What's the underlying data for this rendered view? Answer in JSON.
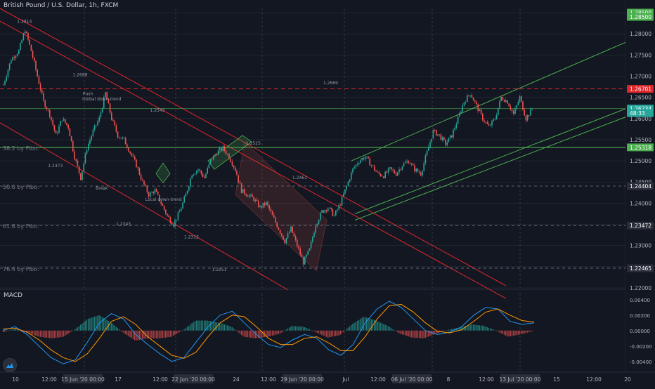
{
  "symbol_title": "British Pound / U.S. Dollar, 1h, FXCM",
  "macd_label": "MACD",
  "colors": {
    "bg": "#131722",
    "grid": "#2a2e39",
    "up": "#26a69a",
    "down": "#ef5350",
    "red_channel": "#e0262b",
    "green_channel": "#4caf50",
    "macd": "#2196f3",
    "signal": "#ff9800"
  },
  "icons": {
    "logo": "tradingview-logo-icon"
  },
  "chart_data": {
    "type": "candlestick",
    "title": "British Pound / U.S. Dollar, 1h, FXCM",
    "y_range": [
      1.22,
      1.286
    ],
    "price_ticks": [
      "1.28500",
      "1.28000",
      "1.27500",
      "1.27000",
      "1.26500",
      "1.26000",
      "1.25500",
      "1.25000",
      "1.24500",
      "1.24000",
      "1.23500",
      "1.23000",
      "1.22500",
      "1.22000"
    ],
    "price_tick_values": [
      1.285,
      1.28,
      1.275,
      1.27,
      1.265,
      1.26,
      1.255,
      1.25,
      1.245,
      1.24,
      1.235,
      1.23,
      1.225,
      1.22
    ],
    "price_labels": [
      {
        "text": "1.28500",
        "price": 1.285,
        "color": "#4caf50"
      },
      {
        "text": "1.28500",
        "price": 1.284,
        "color": "#4caf50"
      },
      {
        "text": "1.26701",
        "price": 1.267,
        "color": "#e0262b"
      },
      {
        "text": "1.26234",
        "price": 1.26234,
        "color": "#26a69a"
      },
      {
        "text": "48:33",
        "price": 1.2613,
        "color": "#26a69a"
      },
      {
        "text": "1.25318",
        "price": 1.25318,
        "color": "#4caf50"
      },
      {
        "text": "1.24404",
        "price": 1.24404,
        "color": "#2a2e39"
      },
      {
        "text": "1.23472",
        "price": 1.23472,
        "color": "#2a2e39"
      },
      {
        "text": "1.22465",
        "price": 1.22465,
        "color": "#2a2e39"
      }
    ],
    "fibo_levels": [
      {
        "label": "38.2 by Fibo:",
        "price": 1.25318
      },
      {
        "label": "50.0 by Fibo:",
        "price": 1.24404
      },
      {
        "label": "61.8 by Fibo:",
        "price": 1.23472
      },
      {
        "label": "76.4 by Fibo:",
        "price": 1.22465
      }
    ],
    "resistance_dashed": 1.26701,
    "horizontal_line": 1.26234,
    "price_points": [
      {
        "i": 0,
        "p": 1.268
      },
      {
        "i": 5,
        "p": 1.274
      },
      {
        "i": 10,
        "p": 1.276
      },
      {
        "i": 14,
        "p": 1.281
      },
      {
        "i": 18,
        "p": 1.276
      },
      {
        "i": 22,
        "p": 1.27
      },
      {
        "i": 26,
        "p": 1.264
      },
      {
        "i": 30,
        "p": 1.261
      },
      {
        "i": 34,
        "p": 1.256
      },
      {
        "i": 38,
        "p": 1.26
      },
      {
        "i": 42,
        "p": 1.258
      },
      {
        "i": 46,
        "p": 1.251
      },
      {
        "i": 50,
        "p": 1.246
      },
      {
        "i": 54,
        "p": 1.253
      },
      {
        "i": 58,
        "p": 1.257
      },
      {
        "i": 62,
        "p": 1.26
      },
      {
        "i": 66,
        "p": 1.266
      },
      {
        "i": 70,
        "p": 1.26
      },
      {
        "i": 74,
        "p": 1.256
      },
      {
        "i": 78,
        "p": 1.255
      },
      {
        "i": 82,
        "p": 1.252
      },
      {
        "i": 86,
        "p": 1.249
      },
      {
        "i": 90,
        "p": 1.245
      },
      {
        "i": 94,
        "p": 1.242
      },
      {
        "i": 98,
        "p": 1.243
      },
      {
        "i": 102,
        "p": 1.24
      },
      {
        "i": 106,
        "p": 1.237
      },
      {
        "i": 110,
        "p": 1.235
      },
      {
        "i": 114,
        "p": 1.238
      },
      {
        "i": 118,
        "p": 1.242
      },
      {
        "i": 122,
        "p": 1.247
      },
      {
        "i": 126,
        "p": 1.248
      },
      {
        "i": 130,
        "p": 1.246
      },
      {
        "i": 134,
        "p": 1.25
      },
      {
        "i": 138,
        "p": 1.252
      },
      {
        "i": 142,
        "p": 1.253
      },
      {
        "i": 146,
        "p": 1.251
      },
      {
        "i": 150,
        "p": 1.248
      },
      {
        "i": 154,
        "p": 1.243
      },
      {
        "i": 158,
        "p": 1.242
      },
      {
        "i": 162,
        "p": 1.241
      },
      {
        "i": 166,
        "p": 1.239
      },
      {
        "i": 170,
        "p": 1.24
      },
      {
        "i": 174,
        "p": 1.237
      },
      {
        "i": 178,
        "p": 1.234
      },
      {
        "i": 182,
        "p": 1.231
      },
      {
        "i": 186,
        "p": 1.234
      },
      {
        "i": 190,
        "p": 1.23
      },
      {
        "i": 194,
        "p": 1.226
      },
      {
        "i": 198,
        "p": 1.229
      },
      {
        "i": 202,
        "p": 1.235
      },
      {
        "i": 206,
        "p": 1.238
      },
      {
        "i": 210,
        "p": 1.239
      },
      {
        "i": 214,
        "p": 1.237
      },
      {
        "i": 218,
        "p": 1.24
      },
      {
        "i": 222,
        "p": 1.244
      },
      {
        "i": 226,
        "p": 1.248
      },
      {
        "i": 230,
        "p": 1.25
      },
      {
        "i": 234,
        "p": 1.251
      },
      {
        "i": 238,
        "p": 1.249
      },
      {
        "i": 242,
        "p": 1.247
      },
      {
        "i": 246,
        "p": 1.2465
      },
      {
        "i": 250,
        "p": 1.248
      },
      {
        "i": 254,
        "p": 1.247
      },
      {
        "i": 258,
        "p": 1.249
      },
      {
        "i": 262,
        "p": 1.25
      },
      {
        "i": 266,
        "p": 1.248
      },
      {
        "i": 270,
        "p": 1.247
      },
      {
        "i": 274,
        "p": 1.252
      },
      {
        "i": 278,
        "p": 1.257
      },
      {
        "i": 282,
        "p": 1.256
      },
      {
        "i": 286,
        "p": 1.254
      },
      {
        "i": 290,
        "p": 1.256
      },
      {
        "i": 294,
        "p": 1.26
      },
      {
        "i": 298,
        "p": 1.264
      },
      {
        "i": 302,
        "p": 1.266
      },
      {
        "i": 306,
        "p": 1.263
      },
      {
        "i": 310,
        "p": 1.26
      },
      {
        "i": 314,
        "p": 1.258
      },
      {
        "i": 318,
        "p": 1.26
      },
      {
        "i": 322,
        "p": 1.265
      },
      {
        "i": 326,
        "p": 1.264
      },
      {
        "i": 330,
        "p": 1.261
      },
      {
        "i": 334,
        "p": 1.265
      },
      {
        "i": 338,
        "p": 1.26
      },
      {
        "i": 342,
        "p": 1.2623
      }
    ],
    "annotations": [
      {
        "text": "1.2814",
        "i": 14,
        "p": 1.2826
      },
      {
        "text": "1.2688",
        "i": 50,
        "p": 1.27
      },
      {
        "text": "Push",
        "i": 55,
        "p": 1.2655
      },
      {
        "text": "Global down-trend",
        "i": 64,
        "p": 1.2643
      },
      {
        "text": "1.2543",
        "i": 100,
        "p": 1.2616
      },
      {
        "text": "1.2473",
        "i": 34,
        "p": 1.2485
      },
      {
        "text": "Break",
        "i": 64,
        "p": 1.2432
      },
      {
        "text": "1.2343",
        "i": 78,
        "p": 1.2348
      },
      {
        "text": "Local down-trend",
        "i": 104,
        "p": 1.2406
      },
      {
        "text": "1.2312",
        "i": 122,
        "p": 1.2317
      },
      {
        "text": "1.2251",
        "i": 140,
        "p": 1.224
      },
      {
        "text": "1.2525",
        "i": 162,
        "p": 1.2538
      },
      {
        "text": "1.2461",
        "i": 192,
        "p": 1.2457
      },
      {
        "text": "1.2669",
        "i": 212,
        "p": 1.2681
      }
    ],
    "time_labels": [
      "10",
      "12:00",
      "15 Jun '20   00:00",
      "17",
      "12:00",
      "22 Jun '20   00:00",
      "24",
      "12:00",
      "29 Jun '20   00:00",
      "Jul",
      "12:00",
      "06 Jul '20   00:00",
      "8",
      "12:00",
      "13 Jul '20   00:00",
      "15",
      "12:00",
      "20"
    ],
    "macd": {
      "name": "MACD",
      "y_range": [
        -0.0052,
        0.0048
      ],
      "ticks": [
        "0.00400",
        "0.00200",
        "0.00000",
        "-0.00200",
        "-0.00400"
      ],
      "tick_values": [
        0.004,
        0.002,
        0.0,
        -0.002,
        -0.004
      ],
      "macd_line": [
        0.0,
        0.0005,
        -0.0005,
        -0.002,
        -0.0035,
        -0.0043,
        -0.0038,
        -0.0015,
        0.001,
        0.0022,
        0.0015,
        -0.0005,
        -0.0018,
        -0.003,
        -0.004,
        -0.0035,
        -0.0015,
        0.0005,
        0.002,
        0.0025,
        0.001,
        -0.0005,
        -0.0018,
        -0.0022,
        -0.0012,
        -0.0005,
        -0.001,
        -0.0025,
        -0.0032,
        -0.0018,
        0.001,
        0.0028,
        0.0038,
        0.003,
        0.0015,
        0.0,
        -0.0005,
        -0.0002,
        0.0005,
        0.002,
        0.003,
        0.0028,
        0.0012,
        0.0008,
        0.001
      ],
      "signal_line": [
        0.0002,
        0.0003,
        -0.0002,
        -0.0012,
        -0.0025,
        -0.0035,
        -0.004,
        -0.003,
        -0.001,
        0.0012,
        0.0018,
        0.0008,
        -0.0008,
        -0.002,
        -0.0032,
        -0.0036,
        -0.0028,
        -0.0008,
        0.001,
        0.002,
        0.0018,
        0.0005,
        -0.001,
        -0.0018,
        -0.0018,
        -0.001,
        -0.0008,
        -0.0016,
        -0.0026,
        -0.0026,
        -0.0008,
        0.0015,
        0.0032,
        0.0034,
        0.0024,
        0.001,
        -0.0001,
        -0.0003,
        0.0001,
        0.0012,
        0.0024,
        0.0028,
        0.002,
        0.0013,
        0.0011
      ]
    }
  }
}
